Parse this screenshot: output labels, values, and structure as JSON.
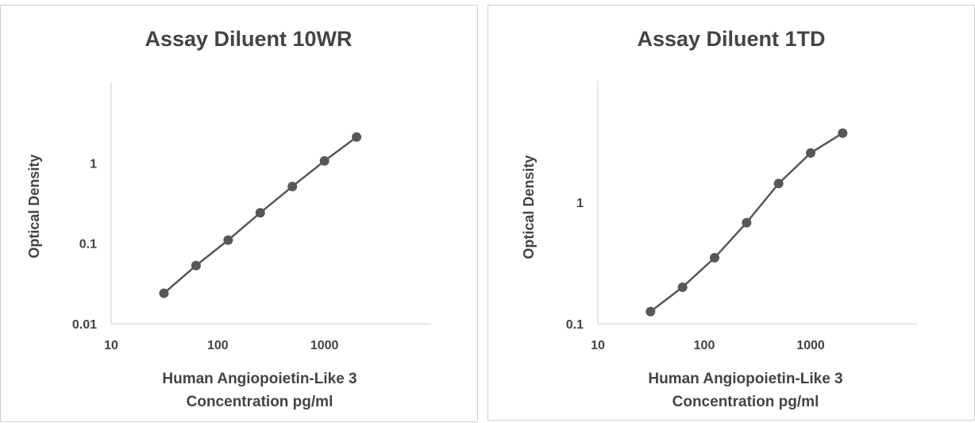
{
  "chart_data": [
    {
      "type": "scatter",
      "title": "Assay Diluent 10WR",
      "xlabel": [
        "Human Angiopoietin-Like 3",
        "Concentration pg/ml"
      ],
      "ylabel": "Optical Density",
      "xscale": "log",
      "yscale": "log",
      "xlim": [
        10,
        10000
      ],
      "ylim": [
        0.01,
        10
      ],
      "xticks": [
        "10",
        "100",
        "1000"
      ],
      "yticks": [
        "0.01",
        "0.1",
        "1"
      ],
      "grid": false,
      "line_color": "#575757",
      "series": [
        {
          "x": [
            31.25,
            62.5,
            125,
            250,
            500,
            1000,
            2000
          ],
          "y": [
            0.024,
            0.053,
            0.11,
            0.24,
            0.51,
            1.06,
            2.1
          ]
        }
      ]
    },
    {
      "type": "scatter",
      "title": "Assay Diluent 1TD",
      "xlabel": [
        "Human Angiopoietin-Like 3",
        "Concentration pg/ml"
      ],
      "ylabel": "Optical Density",
      "xscale": "log",
      "yscale": "log",
      "xlim": [
        10,
        10000
      ],
      "ylim": [
        0.1,
        10
      ],
      "xticks": [
        "10",
        "100",
        "1000"
      ],
      "yticks": [
        "0.1",
        "1"
      ],
      "grid": false,
      "line_color": "#575757",
      "series": [
        {
          "x": [
            31.25,
            62.5,
            125,
            250,
            500,
            1000,
            2000
          ],
          "y": [
            0.126,
            0.2,
            0.35,
            0.68,
            1.43,
            2.55,
            3.72
          ]
        }
      ]
    }
  ]
}
